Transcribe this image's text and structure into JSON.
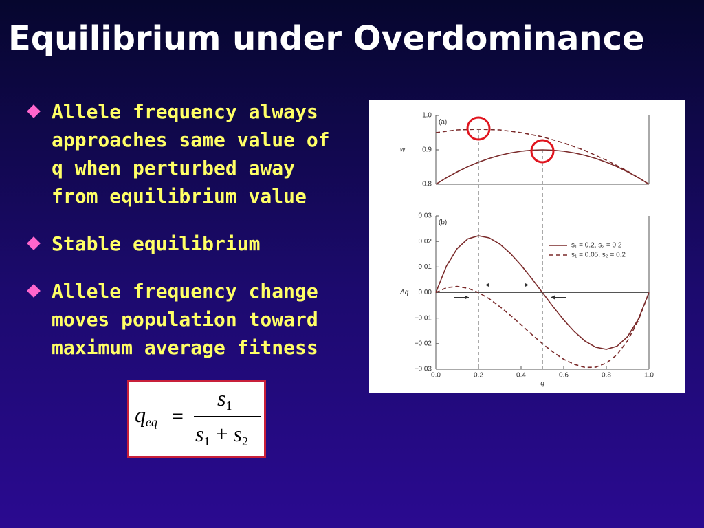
{
  "title": "Equilibrium under Overdominance",
  "bullets": [
    "Allele frequency always approaches same value of q when perturbed away from equilibrium value",
    "Stable equilibrium",
    "Allele frequency change moves population toward maximum average fitness"
  ],
  "formula": {
    "lhs": "q",
    "lhs_sub": "eq",
    "eq": "=",
    "num": "s",
    "num_sub": "1",
    "den_a": "s",
    "den_a_sub": "1",
    "plus": "+",
    "den_b": "s",
    "den_b_sub": "2"
  },
  "chart_data": [
    {
      "type": "line",
      "panel_label": "(a)",
      "ylabel": "w̄",
      "x": [
        0,
        0.05,
        0.1,
        0.15,
        0.2,
        0.25,
        0.3,
        0.35,
        0.4,
        0.45,
        0.5,
        0.55,
        0.6,
        0.65,
        0.7,
        0.75,
        0.8,
        0.85,
        0.9,
        0.95,
        1
      ],
      "xlim": [
        0,
        1
      ],
      "ylim": [
        0.8,
        1
      ],
      "yticks": [
        0.8,
        0.9,
        {
          "value": 1,
          "label": "1.0"
        }
      ],
      "series": [
        {
          "color": "#7a2a2a",
          "line_style": "solid",
          "values": [
            0.8,
            0.819,
            0.836,
            0.851,
            0.864,
            0.875,
            0.884,
            0.891,
            0.896,
            0.899,
            0.9,
            0.899,
            0.896,
            0.891,
            0.884,
            0.875,
            0.864,
            0.851,
            0.836,
            0.819,
            0.8
          ]
        },
        {
          "color": "#7a2a2a",
          "line_style": "dashed",
          "values": [
            0.95,
            0.954,
            0.958,
            0.959,
            0.96,
            0.959,
            0.958,
            0.954,
            0.95,
            0.944,
            0.938,
            0.929,
            0.92,
            0.909,
            0.898,
            0.884,
            0.87,
            0.854,
            0.838,
            0.819,
            0.8
          ]
        }
      ]
    },
    {
      "type": "line",
      "panel_label": "(b)",
      "ylabel": "Δq",
      "xlabel": "q",
      "x": [
        0,
        0.05,
        0.1,
        0.15,
        0.2,
        0.25,
        0.3,
        0.35,
        0.4,
        0.45,
        0.5,
        0.55,
        0.6,
        0.65,
        0.7,
        0.75,
        0.8,
        0.85,
        0.9,
        0.95,
        1
      ],
      "xlim": [
        0,
        1
      ],
      "xticks": [
        {
          "value": 0,
          "label": "0.0"
        },
        0.2,
        0.4,
        0.6,
        0.8,
        {
          "value": 1,
          "label": "1.0"
        }
      ],
      "ylim": [
        -0.03,
        0.03
      ],
      "yticks": [
        {
          "value": -0.03,
          "label": "−0.03"
        },
        {
          "value": -0.02,
          "label": "−0.02"
        },
        {
          "value": -0.01,
          "label": "−0.01"
        },
        {
          "value": 0,
          "label": "0.00"
        },
        0.01,
        0.02,
        0.03
      ],
      "legend": "upper right",
      "series": [
        {
          "name": "s₁ = 0.2, s₂ = 0.2",
          "color": "#7a2a2a",
          "line_style": "solid",
          "values": [
            0,
            0.0104,
            0.0172,
            0.021,
            0.0222,
            0.0214,
            0.019,
            0.0153,
            0.0107,
            0.0055,
            0,
            -0.0055,
            -0.0107,
            -0.0153,
            -0.019,
            -0.0214,
            -0.0222,
            -0.021,
            -0.0172,
            -0.0104,
            0
          ]
        },
        {
          "name": "s₁ = 0.05, s₂ = 0.2",
          "color": "#7a2a2a",
          "line_style": "dashed",
          "values": [
            0,
            0.0019,
            0.0024,
            0.0017,
            0,
            -0.0024,
            -0.0055,
            -0.0089,
            -0.0126,
            -0.0164,
            -0.02,
            -0.0233,
            -0.0261,
            -0.0281,
            -0.0293,
            -0.0292,
            -0.0276,
            -0.0243,
            -0.0188,
            -0.0109,
            0
          ]
        }
      ]
    }
  ]
}
